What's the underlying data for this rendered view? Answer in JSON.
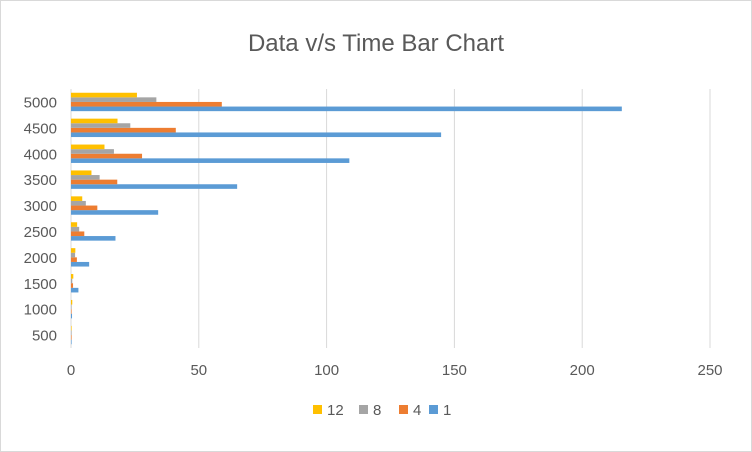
{
  "chart_data": {
    "type": "bar",
    "orientation": "horizontal",
    "title": "Data v/s Time Bar Chart",
    "xlabel": "",
    "ylabel": "",
    "categories": [
      "500",
      "1000",
      "1500",
      "2000",
      "2500",
      "3000",
      "3500",
      "4000",
      "4500",
      "5000"
    ],
    "series": [
      {
        "name": "1",
        "color": "#5B9BD5",
        "values": [
          0.1,
          0.4,
          2.9,
          7.1,
          17.4,
          34.1,
          65.0,
          108.9,
          144.8,
          215.5
        ]
      },
      {
        "name": "4",
        "color": "#ED7D31",
        "values": [
          0.05,
          0.2,
          0.8,
          2.3,
          5.2,
          10.3,
          18.1,
          27.8,
          41.0,
          59.0
        ]
      },
      {
        "name": "8",
        "color": "#A5A5A5",
        "values": [
          0.05,
          0.2,
          0.5,
          1.6,
          3.2,
          5.8,
          11.2,
          16.8,
          23.2,
          33.4
        ]
      },
      {
        "name": "12",
        "color": "#FFC000",
        "values": [
          0.05,
          0.5,
          0.9,
          1.7,
          2.4,
          4.4,
          8.0,
          13.1,
          18.2,
          25.8
        ]
      }
    ],
    "xlim": [
      0,
      250
    ],
    "xticks": [
      "0",
      "50",
      "100",
      "150",
      "200",
      "250"
    ],
    "grid": true,
    "legend_position": "bottom",
    "legend_order": [
      "12",
      "8",
      "4",
      "1"
    ]
  }
}
